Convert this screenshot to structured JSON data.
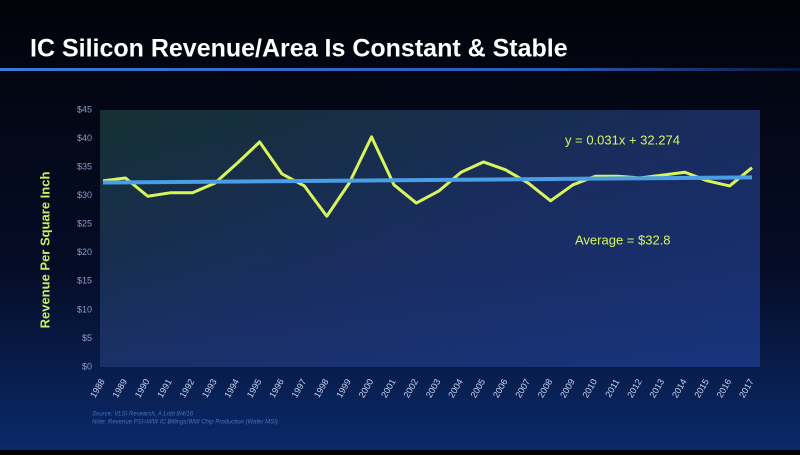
{
  "chart_data": {
    "type": "line",
    "title": "IC Silicon Revenue/Area Is Constant & Stable",
    "y_label": "Revenue Per Square Inch",
    "categories": [
      "1988",
      "1989",
      "1990",
      "1991",
      "1992",
      "1993",
      "1994",
      "1995",
      "1996",
      "1997",
      "1998",
      "1999",
      "2000",
      "2001",
      "2002",
      "2003",
      "2004",
      "2005",
      "2006",
      "2007",
      "2008",
      "2009",
      "2010",
      "2011",
      "2012",
      "2013",
      "2014",
      "2015",
      "2016",
      "2017"
    ],
    "series": [
      {
        "color": "#d8f65c",
        "values": [
          32.6,
          33.1,
          29.9,
          30.5,
          30.5,
          32.2,
          35.7,
          39.4,
          33.8,
          31.7,
          26.4,
          32.2,
          40.3,
          31.9,
          28.7,
          30.8,
          34.1,
          35.9,
          34.5,
          32.2,
          29.1,
          31.9,
          33.4,
          33.4,
          33.1,
          33.6,
          34.1,
          32.6,
          31.7,
          34.9
        ]
      }
    ],
    "trendline": {
      "color": "#4a9ee6",
      "start": 32.3,
      "end": 33.2
    },
    "ylim": [
      0,
      45
    ],
    "yticks": [
      {
        "value": 0,
        "label": "$0"
      },
      {
        "value": 5,
        "label": "$5"
      },
      {
        "value": 10,
        "label": "$10"
      },
      {
        "value": 15,
        "label": "$15"
      },
      {
        "value": 20,
        "label": "$20"
      },
      {
        "value": 25,
        "label": "$25"
      },
      {
        "value": 30,
        "label": "$30"
      },
      {
        "value": 35,
        "label": "$35"
      },
      {
        "value": 40,
        "label": "$40"
      },
      {
        "value": 45,
        "label": "$45"
      }
    ],
    "annotations": [
      "y = 0.031x + 32.274",
      "Average = $32.8"
    ],
    "source": [
      "Source: VLSI Research, A.Lotti 8/4/16",
      "Note: Revenue PSI=WW IC Billings/WW Chip Production (Wafer MSI)"
    ]
  }
}
